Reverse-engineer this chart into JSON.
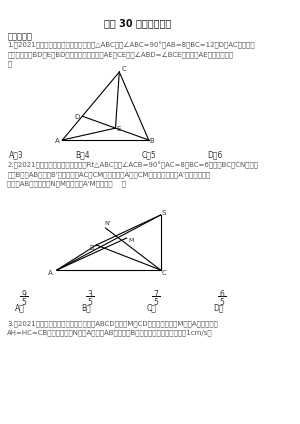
{
  "title": "专题 30 动点综合问题",
  "section1": "一、单选题",
  "q1_line1": "1.（2021广西百色市中考真题）如图，在△ABC中，∠ABC=90°，AB=8，BC=12，D为AC边上的一",
  "q1_line2": "个动点，连接BD，E为BD上的一个动点，连接AE，CE，为∠ABD=∠BCE时，则线AE的最小值是（",
  "q1_line3": "）",
  "q1_opts": [
    "A．3",
    "B．4",
    "C．5",
    "D．6"
  ],
  "q2_line1": "2.（2021内蒙古中考真题）如图，在Rt△ABC中，∠ACB=90°，AC=8，BC=6，将边BC沿CN旋转，",
  "q2_line2": "使点B落在AB上的点B'处，再将边AC与CM旋转，使点A落在CM的延长线上的点A'处，两条新线",
  "q2_line3": "与旧线AB分别交于点N，M，则线段A'M的长为（    ）",
  "q2_opts_num": [
    "9",
    "3",
    "7",
    "6"
  ],
  "q2_opts_den": [
    "5",
    "5",
    "5",
    "5"
  ],
  "q2_opts_letter": [
    "A．",
    "B．",
    "C．",
    "D．"
  ],
  "q3_line1": "3.（2021南昌市中考真题）如图，在矩形ABCD中，点M为CD边上的一点，点M从点A出发沿折线",
  "q3_line2": "AH=HC=CB始终成立，点N从点A出发沿AB运动到点B停止，它们的运动速度都是1cm/s，",
  "bg_color": "#ffffff",
  "text_color": "#555555",
  "title_color": "#111111"
}
